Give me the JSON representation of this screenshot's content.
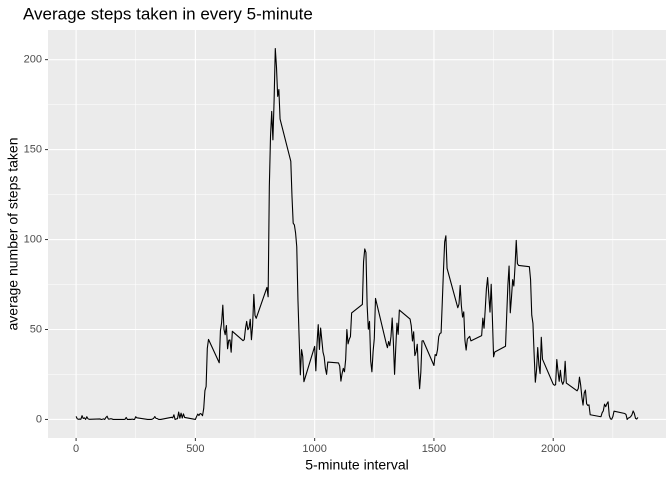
{
  "chart_data": {
    "type": "line",
    "title": "Average steps taken in every 5-minute",
    "xlabel": "5-minute interval",
    "ylabel": "average number of steps taken",
    "x": [
      0,
      5,
      10,
      15,
      20,
      25,
      30,
      35,
      40,
      45,
      50,
      55,
      100,
      105,
      110,
      115,
      120,
      125,
      130,
      135,
      140,
      145,
      150,
      155,
      200,
      205,
      210,
      215,
      220,
      225,
      230,
      235,
      240,
      245,
      250,
      255,
      300,
      305,
      310,
      315,
      320,
      325,
      330,
      335,
      340,
      345,
      350,
      355,
      400,
      405,
      410,
      415,
      420,
      425,
      430,
      435,
      440,
      445,
      450,
      455,
      500,
      505,
      510,
      515,
      520,
      525,
      530,
      535,
      540,
      545,
      550,
      555,
      600,
      605,
      610,
      615,
      620,
      625,
      630,
      635,
      640,
      645,
      650,
      655,
      700,
      705,
      710,
      715,
      720,
      725,
      730,
      735,
      740,
      745,
      750,
      755,
      800,
      805,
      810,
      815,
      820,
      825,
      830,
      835,
      840,
      845,
      850,
      855,
      900,
      905,
      910,
      915,
      920,
      925,
      930,
      935,
      940,
      945,
      950,
      955,
      1000,
      1005,
      1010,
      1015,
      1020,
      1025,
      1030,
      1035,
      1040,
      1045,
      1050,
      1055,
      1100,
      1105,
      1110,
      1115,
      1120,
      1125,
      1130,
      1135,
      1140,
      1145,
      1150,
      1155,
      1200,
      1205,
      1210,
      1215,
      1220,
      1225,
      1230,
      1235,
      1240,
      1245,
      1250,
      1255,
      1300,
      1305,
      1310,
      1315,
      1320,
      1325,
      1330,
      1335,
      1340,
      1345,
      1350,
      1355,
      1400,
      1405,
      1410,
      1415,
      1420,
      1425,
      1430,
      1435,
      1440,
      1445,
      1450,
      1455,
      1500,
      1505,
      1510,
      1515,
      1520,
      1525,
      1530,
      1535,
      1540,
      1545,
      1550,
      1555,
      1600,
      1605,
      1610,
      1615,
      1620,
      1625,
      1630,
      1635,
      1640,
      1645,
      1650,
      1655,
      1700,
      1705,
      1710,
      1715,
      1720,
      1725,
      1730,
      1735,
      1740,
      1745,
      1750,
      1755,
      1800,
      1805,
      1810,
      1815,
      1820,
      1825,
      1830,
      1835,
      1840,
      1845,
      1850,
      1855,
      1900,
      1905,
      1910,
      1915,
      1920,
      1925,
      1930,
      1935,
      1940,
      1945,
      1950,
      1955,
      2000,
      2005,
      2010,
      2015,
      2020,
      2025,
      2030,
      2035,
      2040,
      2045,
      2050,
      2055,
      2100,
      2105,
      2110,
      2115,
      2120,
      2125,
      2130,
      2135,
      2140,
      2145,
      2150,
      2155,
      2200,
      2205,
      2210,
      2215,
      2220,
      2225,
      2230,
      2235,
      2240,
      2245,
      2250,
      2255,
      2300,
      2305,
      2310,
      2315,
      2320,
      2325,
      2330,
      2335,
      2340,
      2345,
      2350,
      2355
    ],
    "values": [
      1.7,
      0.3,
      0.1,
      0.2,
      0.1,
      2.1,
      0.5,
      0.9,
      0,
      1.5,
      0.3,
      0.1,
      0.3,
      0,
      0.1,
      0.3,
      0,
      1.1,
      1.8,
      0.2,
      0.2,
      0.4,
      0.3,
      0,
      0,
      0.1,
      1.1,
      0,
      0,
      0.1,
      0,
      0.2,
      0,
      0,
      1.5,
      0.9,
      0,
      0,
      0,
      0,
      0.2,
      0.6,
      1.6,
      0.6,
      0.5,
      0.1,
      0,
      0,
      1.2,
      0.9,
      2.6,
      0,
      0.3,
      0.4,
      4.1,
      0.7,
      3.5,
      0.8,
      3.1,
      1.1,
      0,
      1.6,
      3.0,
      2.2,
      3.3,
      3.0,
      2.1,
      6.1,
      16,
      18.3,
      39.5,
      44.5,
      31.5,
      49.3,
      53.8,
      63.5,
      50,
      47.1,
      52.2,
      39.3,
      44,
      44.2,
      37.4,
      49,
      43.8,
      44.4,
      50.5,
      54.5,
      49.9,
      51,
      55.7,
      44.3,
      52.3,
      69.5,
      57.8,
      56.2,
      73.4,
      68.2,
      129.4,
      157.5,
      171.2,
      155.4,
      177.3,
      206.2,
      195.9,
      179.6,
      183.4,
      167,
      143.5,
      124,
      109.1,
      108.1,
      103.7,
      96,
      66.2,
      45.2,
      24.8,
      38.8,
      35,
      21,
      40.6,
      27,
      42.4,
      52.7,
      38.9,
      50.8,
      44.3,
      37.4,
      34.7,
      28.3,
      25.1,
      31.9,
      31.4,
      29.7,
      21.3,
      25.5,
      28.4,
      26.5,
      33.4,
      50,
      42,
      44.6,
      46,
      59.2,
      63.9,
      87.7,
      94.8,
      92.8,
      63.4,
      50.2,
      54.5,
      32.4,
      26.5,
      37.7,
      45.1,
      67.3,
      42.3,
      39.9,
      43.3,
      41,
      46.2,
      56.4,
      42.8,
      25.1,
      40,
      53.5,
      47.3,
      60.8,
      55.8,
      52,
      43.6,
      48.7,
      35.5,
      37.5,
      41.8,
      27.5,
      17.1,
      26.1,
      43.6,
      43.8,
      30,
      36.1,
      35.5,
      38.8,
      46,
      47.8,
      48.1,
      65.3,
      82.9,
      98.7,
      102.1,
      84,
      62.1,
      64.1,
      74.5,
      63.2,
      56.9,
      59.8,
      43.9,
      38.6,
      44.7,
      45.5,
      46.2,
      43.7,
      46.6,
      56.3,
      50.7,
      61.2,
      72.7,
      78.9,
      68.9,
      59.7,
      75.1,
      56.5,
      34.8,
      37.5,
      40.7,
      58,
      74.7,
      85.3,
      59.3,
      67.8,
      77.7,
      74.2,
      85.3,
      99.5,
      86.6,
      85.6,
      84.9,
      77.8,
      58,
      53.4,
      36.3,
      20.7,
      27.4,
      40,
      30.2,
      25.5,
      45.7,
      33.5,
      19.6,
      19,
      19.3,
      33.3,
      26.8,
      21.2,
      27.3,
      21.3,
      19.5,
      21.3,
      32.3,
      20.2,
      15.9,
      17.2,
      23.5,
      19.2,
      12.5,
      8,
      14.7,
      16.3,
      8.7,
      7.8,
      8.1,
      2.6,
      1.5,
      3.7,
      4.8,
      8.5,
      7.1,
      8.7,
      9.8,
      2.2,
      0.3,
      0.1,
      1.6,
      4.6,
      3.3,
      2.8,
      0,
      0.8,
      1,
      1.6,
      2.6,
      4.7,
      3.3,
      0.6,
      0.2,
      1.1
    ],
    "color": "#000000",
    "xlim": [
      -117.75,
      2472.75
    ],
    "ylim": [
      -10.31,
      216.48
    ],
    "xticks": [
      0,
      500,
      1000,
      1500,
      2000
    ],
    "yticks": [
      0,
      50,
      100,
      150,
      200
    ],
    "x_minor_ticks": [
      250,
      750,
      1250,
      1750,
      2250
    ],
    "y_minor_ticks": [
      25,
      75,
      125,
      175
    ],
    "grid": true
  }
}
